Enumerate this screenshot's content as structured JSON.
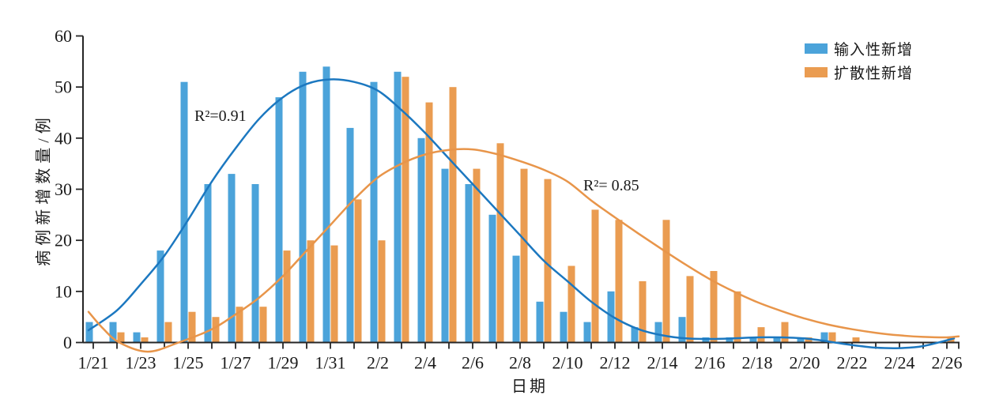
{
  "legend": {
    "items": [
      {
        "label": "输入性新增",
        "color": "#4BA3DA"
      },
      {
        "label": "扩散性新增",
        "color": "#EA9C51"
      }
    ]
  },
  "annotations": {
    "r2_blue": "R²=0.91",
    "r2_orange": "R²= 0.85"
  },
  "chart_data": {
    "type": "bar",
    "title": "",
    "xlabel": "日期",
    "ylabel": "病例新增数量/例",
    "ylim": [
      0,
      60
    ],
    "y_ticks": [
      0,
      10,
      20,
      30,
      40,
      50,
      60
    ],
    "x_tick_label_every": 2,
    "grid": false,
    "legend_position": "top-right",
    "categories": [
      "1/21",
      "1/22",
      "1/23",
      "1/24",
      "1/25",
      "1/26",
      "1/27",
      "1/28",
      "1/29",
      "1/30",
      "1/31",
      "2/1",
      "2/2",
      "2/3",
      "2/4",
      "2/5",
      "2/6",
      "2/7",
      "2/8",
      "2/9",
      "2/10",
      "2/11",
      "2/12",
      "2/13",
      "2/14",
      "2/15",
      "2/16",
      "2/17",
      "2/18",
      "2/19",
      "2/20",
      "2/21",
      "2/22",
      "2/23",
      "2/24",
      "2/25",
      "2/26"
    ],
    "series": [
      {
        "name": "输入性新增",
        "type": "bar",
        "color": "#4BA3DA",
        "values": [
          4,
          4,
          2,
          18,
          51,
          31,
          33,
          31,
          48,
          53,
          54,
          42,
          51,
          53,
          40,
          34,
          31,
          25,
          17,
          8,
          6,
          4,
          10,
          3,
          4,
          5,
          1,
          1,
          1,
          1,
          1,
          2,
          0,
          0,
          0,
          0,
          0
        ]
      },
      {
        "name": "扩散性新增",
        "type": "bar",
        "color": "#EA9C51",
        "values": [
          0,
          2,
          1,
          4,
          6,
          5,
          7,
          7,
          18,
          20,
          19,
          28,
          20,
          52,
          47,
          50,
          34,
          39,
          34,
          32,
          15,
          26,
          24,
          12,
          24,
          13,
          14,
          10,
          3,
          4,
          1,
          2,
          1,
          0,
          0,
          0,
          1
        ]
      },
      {
        "fit_of": "输入性新增",
        "type": "fit-line",
        "color": "#1C78C0",
        "r2": 0.91,
        "points": [
          [
            -0.2,
            2.4
          ],
          [
            1,
            6.3
          ],
          [
            2,
            11.4
          ],
          [
            3,
            17
          ],
          [
            4,
            24
          ],
          [
            5,
            31.5
          ],
          [
            6,
            38
          ],
          [
            7,
            43.8
          ],
          [
            8,
            48
          ],
          [
            9,
            50.6
          ],
          [
            10,
            51.5
          ],
          [
            11,
            51
          ],
          [
            12,
            49.3
          ],
          [
            13,
            45.5
          ],
          [
            14,
            41
          ],
          [
            15,
            36
          ],
          [
            16,
            31
          ],
          [
            17,
            26
          ],
          [
            18,
            21
          ],
          [
            19,
            16
          ],
          [
            20,
            12
          ],
          [
            21,
            8
          ],
          [
            22,
            4.8
          ],
          [
            23,
            2.6
          ],
          [
            24,
            1.4
          ],
          [
            25,
            0.8
          ],
          [
            26,
            0.7
          ],
          [
            27,
            0.8
          ],
          [
            28,
            1
          ],
          [
            29,
            1
          ],
          [
            30,
            0.8
          ],
          [
            31,
            0.2
          ],
          [
            32,
            -0.5
          ],
          [
            33,
            -1
          ],
          [
            34,
            -1.1
          ],
          [
            35,
            -0.7
          ],
          [
            36.3,
            0.8
          ]
        ]
      },
      {
        "fit_of": "扩散性新增",
        "type": "fit-line",
        "color": "#E8954A",
        "r2": 0.85,
        "points": [
          [
            -0.2,
            6
          ],
          [
            0.4,
            2.8
          ],
          [
            1.1,
            0
          ],
          [
            2.3,
            -1.8
          ],
          [
            3.6,
            0
          ],
          [
            5,
            2.6
          ],
          [
            6,
            5.5
          ],
          [
            7,
            8.8
          ],
          [
            8,
            13
          ],
          [
            9,
            18
          ],
          [
            10,
            23
          ],
          [
            11,
            28
          ],
          [
            12,
            32.3
          ],
          [
            13,
            35
          ],
          [
            14,
            36.8
          ],
          [
            15,
            37.7
          ],
          [
            16,
            37.8
          ],
          [
            17,
            36.9
          ],
          [
            18,
            35.5
          ],
          [
            19,
            33.8
          ],
          [
            20,
            31.5
          ],
          [
            21,
            27.8
          ],
          [
            22,
            24.5
          ],
          [
            23,
            21.3
          ],
          [
            24,
            18.2
          ],
          [
            25,
            15.2
          ],
          [
            26,
            12.4
          ],
          [
            27,
            10
          ],
          [
            28,
            7.9
          ],
          [
            29,
            6.2
          ],
          [
            30,
            4.7
          ],
          [
            31,
            3.5
          ],
          [
            32,
            2.6
          ],
          [
            33,
            1.9
          ],
          [
            34,
            1.4
          ],
          [
            35,
            1.1
          ],
          [
            36,
            1
          ],
          [
            36.5,
            1.2
          ]
        ]
      }
    ]
  }
}
